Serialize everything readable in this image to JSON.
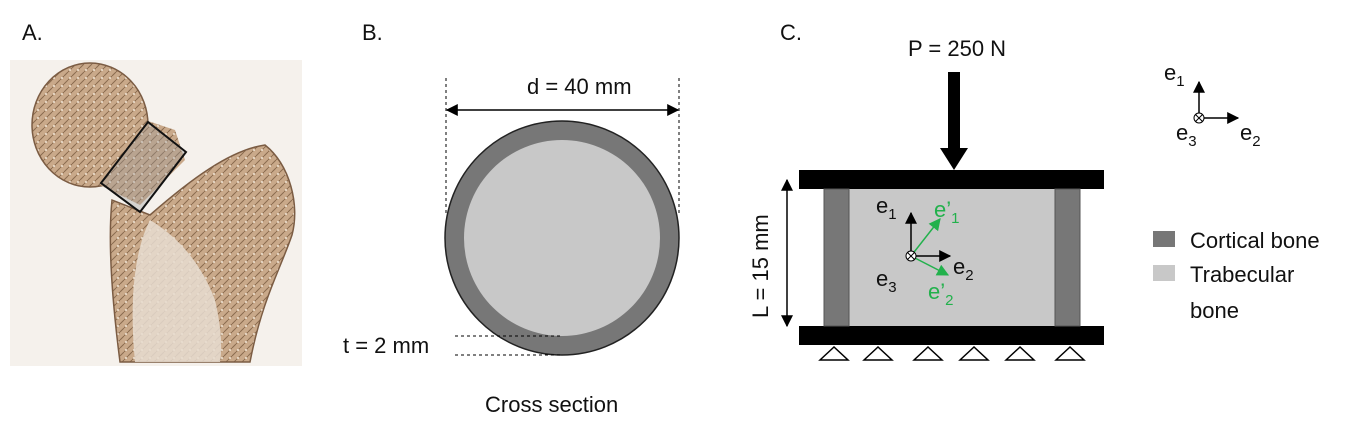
{
  "panels": {
    "a": {
      "label": "A."
    },
    "b": {
      "label": "B.",
      "diameter": "d = 40 mm",
      "thickness": "t = 2 mm",
      "caption": "Cross section"
    },
    "c": {
      "label": "C.",
      "load": "P = 250 N",
      "length": "L = 15 mm"
    }
  },
  "axes": {
    "e1": {
      "base": "e",
      "sub": "1"
    },
    "e2": {
      "base": "e",
      "sub": "2"
    },
    "e3": {
      "base": "e",
      "sub": "3"
    },
    "e1p": {
      "base": "e’",
      "sub": "1"
    },
    "e2p": {
      "base": "e’",
      "sub": "2"
    }
  },
  "legend": {
    "cortical": "Cortical bone",
    "trabecular_line1": "Trabecular",
    "trabecular_line2": "bone"
  },
  "colors": {
    "cortical": "#777777",
    "trabecular": "#c8c8c8",
    "accent_green": "#22b14c",
    "black": "#000000"
  }
}
